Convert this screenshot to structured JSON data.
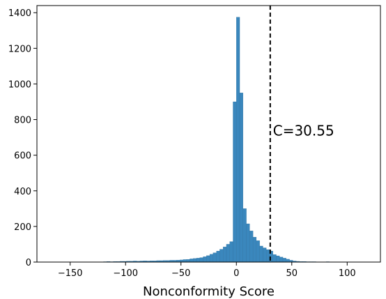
{
  "chart_data": {
    "type": "bar",
    "title": "",
    "xlabel": "Nonconformity Score",
    "ylabel": "",
    "xlim": [
      -180,
      130
    ],
    "ylim": [
      0,
      1440
    ],
    "xticks": [
      -150,
      -100,
      -50,
      0,
      50,
      100
    ],
    "xtick_labels": [
      "−150",
      "−100",
      "−50",
      "0",
      "50",
      "100"
    ],
    "yticks": [
      0,
      200,
      400,
      600,
      800,
      1000,
      1200,
      1400
    ],
    "ytick_labels": [
      "0",
      "200",
      "400",
      "600",
      "800",
      "1000",
      "1200",
      "1400"
    ],
    "bin_width": 3,
    "bar_color": "#3a87bd",
    "grid": false,
    "bins": [
      {
        "x": -120,
        "y": 2
      },
      {
        "x": -117,
        "y": 3
      },
      {
        "x": -114,
        "y": 2
      },
      {
        "x": -111,
        "y": 3
      },
      {
        "x": -108,
        "y": 3
      },
      {
        "x": -105,
        "y": 4
      },
      {
        "x": -102,
        "y": 4
      },
      {
        "x": -99,
        "y": 5
      },
      {
        "x": -96,
        "y": 5
      },
      {
        "x": -93,
        "y": 6
      },
      {
        "x": -90,
        "y": 5
      },
      {
        "x": -87,
        "y": 6
      },
      {
        "x": -84,
        "y": 7
      },
      {
        "x": -81,
        "y": 6
      },
      {
        "x": -78,
        "y": 7
      },
      {
        "x": -75,
        "y": 7
      },
      {
        "x": -72,
        "y": 8
      },
      {
        "x": -69,
        "y": 8
      },
      {
        "x": -66,
        "y": 9
      },
      {
        "x": -63,
        "y": 9
      },
      {
        "x": -60,
        "y": 10
      },
      {
        "x": -57,
        "y": 10
      },
      {
        "x": -54,
        "y": 11
      },
      {
        "x": -51,
        "y": 12
      },
      {
        "x": -48,
        "y": 14
      },
      {
        "x": -45,
        "y": 15
      },
      {
        "x": -42,
        "y": 18
      },
      {
        "x": -39,
        "y": 20
      },
      {
        "x": -36,
        "y": 22
      },
      {
        "x": -33,
        "y": 25
      },
      {
        "x": -30,
        "y": 30
      },
      {
        "x": -27,
        "y": 36
      },
      {
        "x": -24,
        "y": 44
      },
      {
        "x": -21,
        "y": 52
      },
      {
        "x": -18,
        "y": 62
      },
      {
        "x": -15,
        "y": 72
      },
      {
        "x": -12,
        "y": 85
      },
      {
        "x": -9,
        "y": 100
      },
      {
        "x": -6,
        "y": 115
      },
      {
        "x": -3,
        "y": 900
      },
      {
        "x": 0,
        "y": 1375
      },
      {
        "x": 3,
        "y": 950
      },
      {
        "x": 6,
        "y": 300
      },
      {
        "x": 9,
        "y": 215
      },
      {
        "x": 12,
        "y": 175
      },
      {
        "x": 15,
        "y": 140
      },
      {
        "x": 18,
        "y": 120
      },
      {
        "x": 21,
        "y": 90
      },
      {
        "x": 24,
        "y": 80
      },
      {
        "x": 27,
        "y": 70
      },
      {
        "x": 30,
        "y": 62
      },
      {
        "x": 33,
        "y": 42
      },
      {
        "x": 36,
        "y": 35
      },
      {
        "x": 39,
        "y": 28
      },
      {
        "x": 42,
        "y": 22
      },
      {
        "x": 45,
        "y": 16
      },
      {
        "x": 48,
        "y": 10
      },
      {
        "x": 51,
        "y": 6
      },
      {
        "x": 54,
        "y": 4
      },
      {
        "x": 57,
        "y": 3
      },
      {
        "x": 60,
        "y": 3
      },
      {
        "x": 63,
        "y": 2
      },
      {
        "x": 66,
        "y": 2
      },
      {
        "x": 69,
        "y": 2
      },
      {
        "x": 72,
        "y": 1
      },
      {
        "x": 78,
        "y": 1
      },
      {
        "x": 81,
        "y": 2
      },
      {
        "x": 87,
        "y": 1
      }
    ],
    "annotations": [
      {
        "type": "vline",
        "x": 30.55,
        "style": "dashed",
        "color": "#000000"
      },
      {
        "type": "text",
        "text": "C=30.55",
        "x": 33,
        "y": 710
      }
    ]
  }
}
